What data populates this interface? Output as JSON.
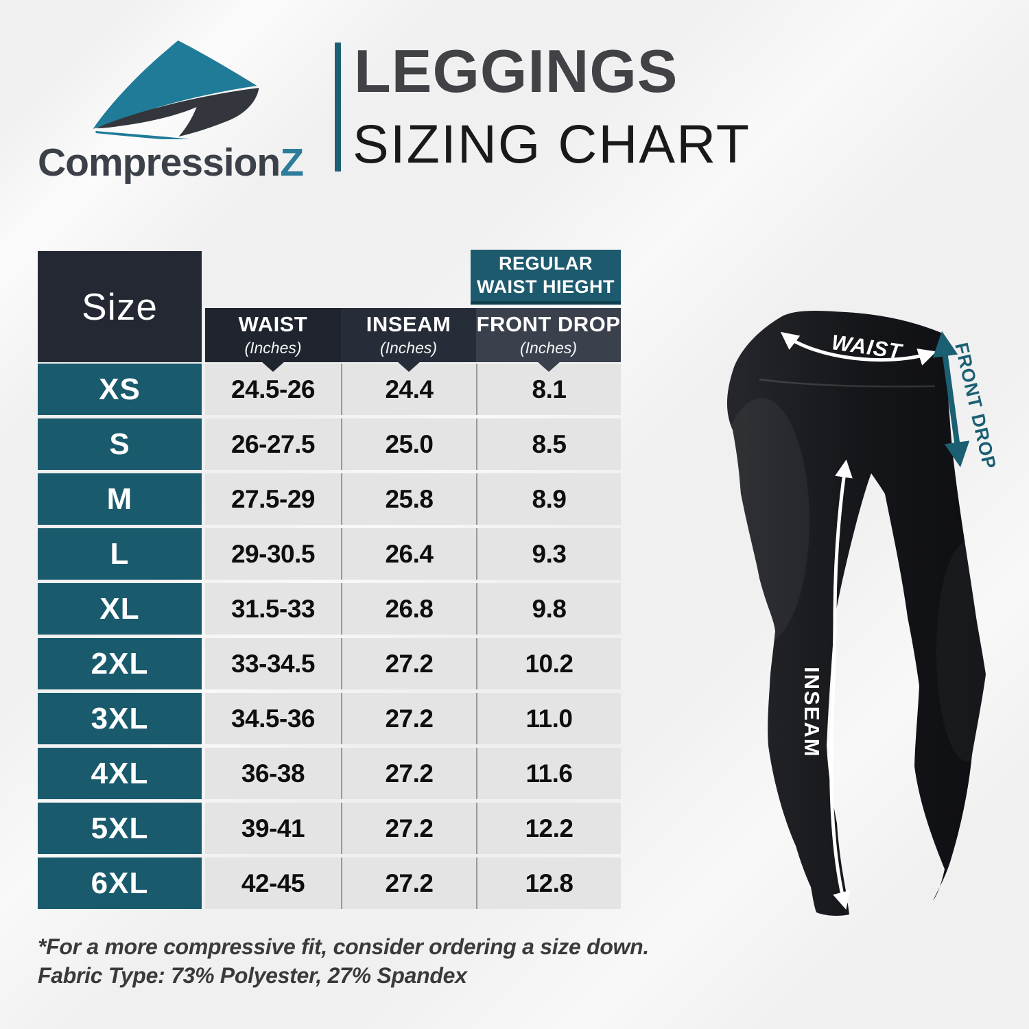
{
  "brand": {
    "name_main": "Compression",
    "name_accent": "Z"
  },
  "title": {
    "line1": "LEGGINGS",
    "line2": "SIZING CHART"
  },
  "table": {
    "size_header": "Size",
    "group_header": {
      "line1": "REGULAR",
      "line2": "WAIST HIEGHT"
    },
    "columns": [
      {
        "label": "WAIST",
        "unit": "(Inches)"
      },
      {
        "label": "INSEAM",
        "unit": "(Inches)"
      },
      {
        "label": "FRONT DROP",
        "unit": "(Inches)"
      }
    ],
    "rows": [
      {
        "size": "XS",
        "waist": "24.5-26",
        "inseam": "24.4",
        "front_drop": "8.1"
      },
      {
        "size": "S",
        "waist": "26-27.5",
        "inseam": "25.0",
        "front_drop": "8.5"
      },
      {
        "size": "M",
        "waist": "27.5-29",
        "inseam": "25.8",
        "front_drop": "8.9"
      },
      {
        "size": "L",
        "waist": "29-30.5",
        "inseam": "26.4",
        "front_drop": "9.3"
      },
      {
        "size": "XL",
        "waist": "31.5-33",
        "inseam": "26.8",
        "front_drop": "9.8"
      },
      {
        "size": "2XL",
        "waist": "33-34.5",
        "inseam": "27.2",
        "front_drop": "10.2"
      },
      {
        "size": "3XL",
        "waist": "34.5-36",
        "inseam": "27.2",
        "front_drop": "11.0"
      },
      {
        "size": "4XL",
        "waist": "36-38",
        "inseam": "27.2",
        "front_drop": "11.6"
      },
      {
        "size": "5XL",
        "waist": "39-41",
        "inseam": "27.2",
        "front_drop": "12.2"
      },
      {
        "size": "6XL",
        "waist": "42-45",
        "inseam": "27.2",
        "front_drop": "12.8"
      }
    ]
  },
  "footnotes": {
    "line1": "*For a more compressive fit, consider ordering a size down.",
    "line2": "Fabric Type: 73% Polyester, 27% Spandex"
  },
  "diagram": {
    "waist_label": "WAIST",
    "front_drop_label": "FRONT DROP",
    "inseam_label": "INSEAM"
  },
  "colors": {
    "teal_box": "#1d5a6e",
    "teal_row": "#1a5a6d",
    "teal_logo": "#207b98",
    "accent_z": "#2d7d9a",
    "dark_navy": "#232832",
    "header_waist": "#1f242e",
    "header_inseam": "#272d38",
    "header_front_drop": "#3a414d",
    "cell_gray": "#e4e4e4",
    "background": "#f0f0f1"
  },
  "chart_data": {
    "type": "table",
    "title": "LEGGINGS SIZING CHART",
    "group_header": "REGULAR WAIST HIEGHT (over FRONT DROP column)",
    "columns": [
      "Size",
      "WAIST (Inches)",
      "INSEAM (Inches)",
      "FRONT DROP (Inches)"
    ],
    "rows": [
      [
        "XS",
        "24.5-26",
        "24.4",
        "8.1"
      ],
      [
        "S",
        "26-27.5",
        "25.0",
        "8.5"
      ],
      [
        "M",
        "27.5-29",
        "25.8",
        "8.9"
      ],
      [
        "L",
        "29-30.5",
        "26.4",
        "9.3"
      ],
      [
        "XL",
        "31.5-33",
        "26.8",
        "9.8"
      ],
      [
        "2XL",
        "33-34.5",
        "27.2",
        "10.2"
      ],
      [
        "3XL",
        "34.5-36",
        "27.2",
        "11.0"
      ],
      [
        "4XL",
        "36-38",
        "27.2",
        "11.6"
      ],
      [
        "5XL",
        "39-41",
        "27.2",
        "12.2"
      ],
      [
        "6XL",
        "42-45",
        "27.2",
        "12.8"
      ]
    ],
    "notes": [
      "*For a more compressive fit, consider ordering a size down.",
      "Fabric Type: 73% Polyester, 27% Spandex"
    ]
  }
}
